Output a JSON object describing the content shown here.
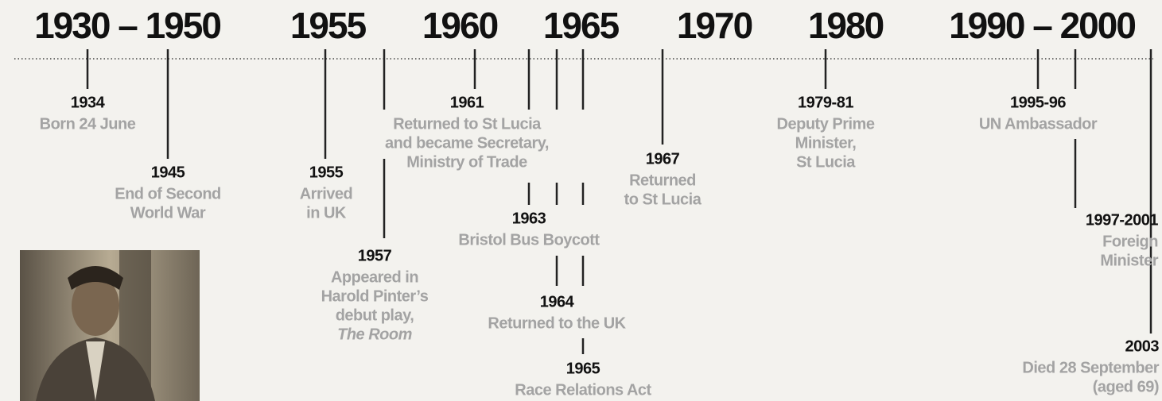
{
  "headers": [
    "1930 – 1950",
    "1955",
    "1960",
    "1965",
    "1970",
    "1980",
    "1990 – 2000"
  ],
  "events": [
    {
      "year": "1934",
      "lines": [
        "Born 24 June"
      ]
    },
    {
      "year": "1945",
      "lines": [
        "End of Second",
        "World War"
      ]
    },
    {
      "year": "1955",
      "lines": [
        "Arrived",
        "in UK"
      ]
    },
    {
      "year": "1957",
      "lines": [
        "Appeared in",
        "Harold Pinter’s",
        "debut play,",
        "The Room"
      ]
    },
    {
      "year": "1961",
      "lines": [
        "Returned to St Lucia",
        "and became Secretary,",
        "Ministry of Trade"
      ]
    },
    {
      "year": "1963",
      "lines": [
        "Bristol Bus Boycott"
      ]
    },
    {
      "year": "1964",
      "lines": [
        "Returned to the UK"
      ]
    },
    {
      "year": "1965",
      "lines": [
        "Race Relations Act"
      ]
    },
    {
      "year": "1967",
      "lines": [
        "Returned",
        "to St Lucia"
      ]
    },
    {
      "year": "1979-81",
      "lines": [
        "Deputy Prime",
        "Minister,",
        "St Lucia"
      ]
    },
    {
      "year": "1995-96",
      "lines": [
        "UN Ambassador"
      ]
    },
    {
      "year": "1997-2001",
      "lines": [
        "Foreign",
        "Minister"
      ]
    },
    {
      "year": "2003",
      "lines": [
        "Died 28 September",
        "(aged 69)"
      ]
    }
  ]
}
